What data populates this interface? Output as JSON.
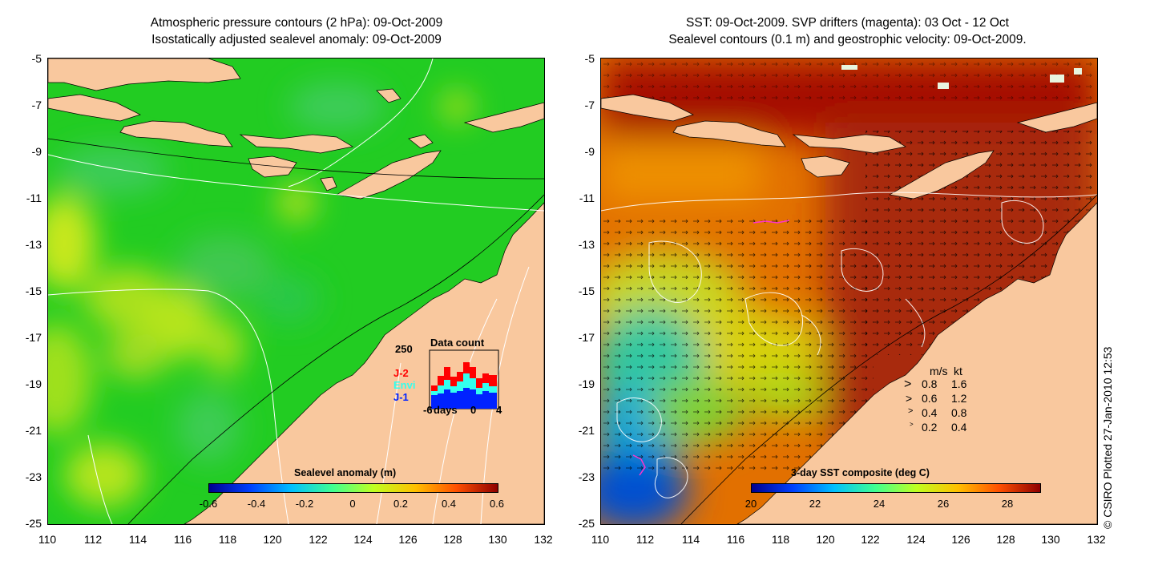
{
  "left_panel": {
    "title_line1": "Atmospheric pressure contours (2 hPa): 09-Oct-2009",
    "title_line2": "Isostatically adjusted sealevel anomaly: 09-Oct-2009",
    "colorbar": {
      "label": "Sealevel anomaly (m)",
      "ticks": [
        "-0.6",
        "-0.4",
        "-0.2",
        "0",
        "0.2",
        "0.4",
        "0.6"
      ]
    },
    "data_count": {
      "title": "Data count",
      "max_label": "250",
      "legend": [
        "J-2",
        "Envi",
        "J-1"
      ],
      "legend_colors": [
        "#ff0000",
        "#33ffee",
        "#0022ff"
      ],
      "xticks": [
        "-6",
        "days",
        "0",
        "4"
      ]
    }
  },
  "right_panel": {
    "title_line1": "SST: 09-Oct-2009. SVP drifters (magenta): 03 Oct - 12 Oct",
    "title_line2": "Sealevel contours (0.1 m) and geostrophic velocity: 09-Oct-2009.",
    "colorbar": {
      "label": "3-day SST composite (deg C)",
      "ticks": [
        "20",
        "22",
        "24",
        "26",
        "28"
      ]
    },
    "velocity_key": {
      "header_ms": "m/s",
      "header_kt": "kt",
      "rows": [
        {
          "ms": "0.8",
          "kt": "1.6"
        },
        {
          "ms": "0.6",
          "kt": "1.2"
        },
        {
          "ms": "0.4",
          "kt": "0.8"
        },
        {
          "ms": "0.2",
          "kt": "0.4"
        }
      ]
    }
  },
  "axes": {
    "yticks": [
      "-5",
      "-7",
      "-9",
      "-11",
      "-13",
      "-15",
      "-17",
      "-19",
      "-21",
      "-23",
      "-25"
    ],
    "xticks": [
      "110",
      "112",
      "114",
      "116",
      "118",
      "120",
      "122",
      "124",
      "126",
      "128",
      "130",
      "132"
    ]
  },
  "copyright": "© CSIRO Plotted 27-Jan-2010 12:53",
  "colors": {
    "land": "#f9c89e",
    "sla_base": "#22cc22",
    "sst_hot": "#a50f05",
    "sst_orange": "#e86a00",
    "contour": "#ffffff",
    "drifter": "#ff33cc"
  }
}
